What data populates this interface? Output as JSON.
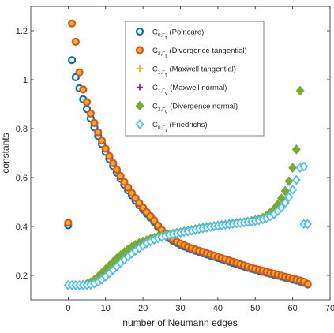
{
  "chart_data": {
    "type": "scatter",
    "title": "",
    "xlabel": "number of Neumann edges",
    "ylabel": "constants",
    "xlim": [
      -10,
      70
    ],
    "ylim": [
      0.1,
      1.3
    ],
    "xticks": [
      0,
      10,
      20,
      30,
      40,
      50,
      60,
      70
    ],
    "xtick_labels": [
      "0",
      "10",
      "20",
      "30",
      "40",
      "50",
      "60",
      "70"
    ],
    "yticks": [
      0.2,
      0.4,
      0.6,
      0.8,
      1.0,
      1.2
    ],
    "ytick_labels": [
      "0.2",
      "0.4",
      "0.6",
      "0.8",
      "1",
      "1.2"
    ],
    "grid": false,
    "legend_position": "top-right",
    "x": [
      0,
      1,
      2,
      3,
      4,
      5,
      6,
      7,
      8,
      9,
      10,
      11,
      12,
      13,
      14,
      15,
      16,
      17,
      18,
      19,
      20,
      21,
      22,
      23,
      24,
      25,
      26,
      27,
      28,
      29,
      30,
      31,
      32,
      33,
      34,
      35,
      36,
      37,
      38,
      39,
      40,
      41,
      42,
      43,
      44,
      45,
      46,
      47,
      48,
      49,
      50,
      51,
      52,
      53,
      54,
      55,
      56,
      57,
      58,
      59,
      60,
      61,
      62,
      63,
      64
    ],
    "series": [
      {
        "name": "Poincare",
        "legend_main": "C",
        "legend_sub": "0,Γ",
        "legend_subsub": "τ",
        "legend_text": "(Poincare)",
        "marker": "circle",
        "color": "#0072BD",
        "values": [
          0.405,
          1.08,
          1.01,
          0.965,
          0.92,
          0.88,
          0.842,
          0.805,
          0.77,
          0.737,
          0.705,
          0.675,
          0.647,
          0.62,
          0.595,
          0.571,
          0.548,
          0.527,
          0.506,
          0.487,
          0.469,
          0.452,
          0.436,
          0.419,
          0.398,
          0.38,
          0.365,
          0.352,
          0.342,
          0.333,
          0.325,
          0.318,
          0.312,
          0.306,
          0.301,
          0.296,
          0.291,
          0.286,
          0.281,
          0.276,
          0.271,
          0.266,
          0.261,
          0.256,
          0.251,
          0.246,
          0.241,
          0.236,
          0.231,
          0.227,
          0.223,
          0.219,
          0.215,
          0.211,
          0.207,
          0.203,
          0.199,
          0.195,
          0.191,
          0.187,
          0.183,
          0.179,
          0.175,
          0.17,
          0.163
        ]
      },
      {
        "name": "Divergence tangential",
        "legend_main": "C",
        "legend_sub": "2,Γ",
        "legend_subsub": "τ",
        "legend_text": "(Divergence tangential)",
        "marker": "circle",
        "color": "#D95319",
        "fill": "#EDB120",
        "values": [
          0.415,
          1.23,
          1.155,
          1.03,
          0.96,
          0.908,
          0.862,
          0.823,
          0.785,
          0.751,
          0.718,
          0.688,
          0.659,
          0.632,
          0.606,
          0.582,
          0.559,
          0.537,
          0.516,
          0.496,
          0.477,
          0.459,
          0.442,
          0.425,
          0.404,
          0.386,
          0.371,
          0.358,
          0.347,
          0.338,
          0.33,
          0.323,
          0.317,
          0.311,
          0.306,
          0.301,
          0.296,
          0.291,
          0.286,
          0.281,
          0.276,
          0.271,
          0.266,
          0.261,
          0.256,
          0.251,
          0.246,
          0.241,
          0.236,
          0.231,
          0.227,
          0.223,
          0.219,
          0.215,
          0.211,
          0.207,
          0.203,
          0.199,
          0.195,
          0.191,
          0.187,
          0.183,
          0.179,
          0.174,
          0.165
        ]
      },
      {
        "name": "Maxwell tangential",
        "legend_main": "C",
        "legend_sub": "1,Γ",
        "legend_subsub": "τ",
        "legend_text": "(Maxwell tangential)",
        "marker": "plus",
        "color": "#EDB120",
        "values": []
      },
      {
        "name": "Maxwell normal",
        "legend_main": "C",
        "legend_sub": "1,Γ",
        "legend_subsub": "ν",
        "legend_text": "(Maxwell normal)",
        "marker": "plus",
        "color": "#7E2F8E",
        "values": []
      },
      {
        "name": "Divergence normal",
        "legend_main": "C",
        "legend_sub": "2,Γ",
        "legend_subsub": "ν",
        "legend_text": "(Divergence normal)",
        "marker": "diamond",
        "color": "#77AC30",
        "fill": "#77AC30",
        "values": [
          0.16,
          0.16,
          0.16,
          0.16,
          0.162,
          0.165,
          0.172,
          0.182,
          0.195,
          0.21,
          0.225,
          0.24,
          0.255,
          0.27,
          0.283,
          0.295,
          0.306,
          0.316,
          0.325,
          0.333,
          0.339,
          0.344,
          0.349,
          0.354,
          0.358,
          0.362,
          0.365,
          0.368,
          0.371,
          0.374,
          0.377,
          0.38,
          0.383,
          0.386,
          0.389,
          0.392,
          0.395,
          0.398,
          0.4,
          0.402,
          0.404,
          0.406,
          0.408,
          0.41,
          0.412,
          0.414,
          0.416,
          0.418,
          0.42,
          0.423,
          0.426,
          0.43,
          0.436,
          0.444,
          0.456,
          0.47,
          0.49,
          0.515,
          0.545,
          0.585,
          0.64,
          0.715,
          0.955,
          null,
          null
        ]
      },
      {
        "name": "Friedrichs",
        "legend_main": "C",
        "legend_sub": "0,Γ",
        "legend_subsub": "τ",
        "legend_text": "(Friedrichs)",
        "marker": "diamond",
        "color": "#4DBEEE",
        "values": [
          0.16,
          0.16,
          0.16,
          0.16,
          0.16,
          0.16,
          0.162,
          0.166,
          0.173,
          0.183,
          0.195,
          0.208,
          0.222,
          0.236,
          0.25,
          0.264,
          0.277,
          0.289,
          0.301,
          0.312,
          0.322,
          0.331,
          0.339,
          0.346,
          0.352,
          0.357,
          0.361,
          0.365,
          0.368,
          0.371,
          0.374,
          0.377,
          0.38,
          0.383,
          0.386,
          0.389,
          0.392,
          0.395,
          0.398,
          0.4,
          0.402,
          0.404,
          0.406,
          0.408,
          0.41,
          0.412,
          0.414,
          0.416,
          0.418,
          0.42,
          0.422,
          0.425,
          0.429,
          0.434,
          0.441,
          0.45,
          0.462,
          0.477,
          0.496,
          0.52,
          0.55,
          0.59,
          0.64,
          0.41,
          null
        ]
      }
    ],
    "extra_points": {
      "Divergence normal": [
        [
          64,
          0.41
        ]
      ],
      "Friedrichs": [
        [
          63,
          0.645
        ],
        [
          64,
          0.41
        ]
      ]
    }
  }
}
